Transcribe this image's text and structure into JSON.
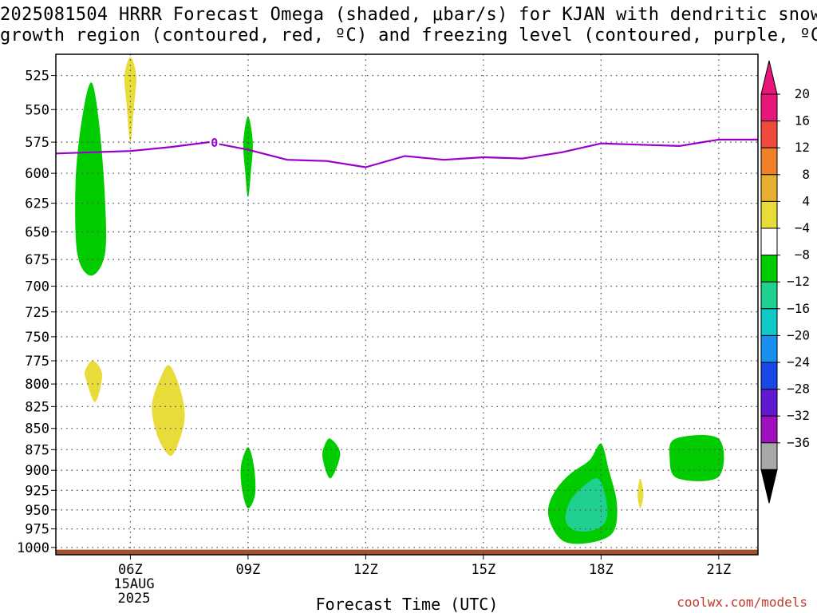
{
  "title": {
    "line1": "2025081504 HRRR Forecast Omega (shaded, μbar/s) for KJAN with dendritic snow",
    "line2": "growth region (contoured, red, ºC) and freezing level (contoured, purple, ºC)"
  },
  "credit": "coolwx.com/models",
  "chart_data": {
    "type": "time-height contour",
    "xlabel": "Forecast Time (UTC)",
    "x_ticks": [
      "06Z",
      "09Z",
      "12Z",
      "15Z",
      "18Z",
      "21Z"
    ],
    "x_ticks_hours": [
      6,
      9,
      12,
      15,
      18,
      21
    ],
    "x_date_label": [
      "15AUG",
      "2025"
    ],
    "xlim_hours": [
      4.1,
      22.0
    ],
    "ylabel": "",
    "y_ticks": [
      525,
      550,
      575,
      600,
      625,
      650,
      675,
      700,
      725,
      750,
      775,
      800,
      825,
      850,
      875,
      900,
      925,
      950,
      975,
      1000
    ],
    "ylim_hpa": [
      510,
      1010
    ],
    "y_log_scale": true,
    "grid": true,
    "colorbar": {
      "units": "μbar/s",
      "labels": [
        "20",
        "16",
        "12",
        "8",
        "4",
        "−4",
        "−8",
        "−12",
        "−16",
        "−20",
        "−24",
        "−28",
        "−32",
        "−36"
      ],
      "colors": [
        "#e8167a",
        "#f04a3a",
        "#f0802a",
        "#e8b030",
        "#e8dc3a",
        "#ffffff",
        "#00cc00",
        "#20d090",
        "#10c8c8",
        "#1890f0",
        "#1848e8",
        "#6018d0",
        "#a010c0",
        "#a8a8a8"
      ],
      "extend_colors": {
        "top": "#e8167a",
        "bottom": "#000000"
      }
    },
    "freezing_level": {
      "label": "0",
      "color": "#9900cc",
      "points": [
        [
          4.1,
          584
        ],
        [
          5.0,
          583
        ],
        [
          6.0,
          582
        ],
        [
          7.0,
          579
        ],
        [
          8.0,
          575
        ],
        [
          9.0,
          581
        ],
        [
          10.0,
          589
        ],
        [
          11.0,
          590
        ],
        [
          12.0,
          595
        ],
        [
          13.0,
          586
        ],
        [
          14.0,
          589
        ],
        [
          15.0,
          587
        ],
        [
          16.0,
          588
        ],
        [
          17.0,
          583
        ],
        [
          18.0,
          576
        ],
        [
          19.0,
          577
        ],
        [
          20.0,
          578
        ],
        [
          21.0,
          573
        ],
        [
          22.0,
          573
        ]
      ]
    },
    "omega_regions": [
      {
        "band": "-8 to -4",
        "color": "#00cc00",
        "points": [
          [
            5.0,
            530
          ],
          [
            5.2,
            560
          ],
          [
            5.35,
            620
          ],
          [
            5.35,
            670
          ],
          [
            5.0,
            690
          ],
          [
            4.65,
            670
          ],
          [
            4.6,
            610
          ],
          [
            4.75,
            560
          ]
        ]
      },
      {
        "band": "4 to 8",
        "color": "#e8dc3a",
        "points": [
          [
            6.0,
            512
          ],
          [
            6.15,
            525
          ],
          [
            6.1,
            545
          ],
          [
            6.0,
            575
          ],
          [
            5.9,
            545
          ],
          [
            5.85,
            525
          ]
        ]
      },
      {
        "band": "-8 to -4",
        "color": "#00cc00",
        "points": [
          [
            9.0,
            555
          ],
          [
            9.12,
            575
          ],
          [
            9.07,
            600
          ],
          [
            9.0,
            620
          ],
          [
            8.93,
            600
          ],
          [
            8.88,
            575
          ]
        ]
      },
      {
        "band": "4 to 8",
        "color": "#e8dc3a",
        "points": [
          [
            5.05,
            775
          ],
          [
            5.28,
            790
          ],
          [
            5.1,
            820
          ],
          [
            4.87,
            795
          ],
          [
            4.85,
            785
          ]
        ]
      },
      {
        "band": "4 to 8",
        "color": "#e8dc3a",
        "points": [
          [
            7.0,
            780
          ],
          [
            7.3,
            810
          ],
          [
            7.38,
            840
          ],
          [
            7.2,
            870
          ],
          [
            7.0,
            882
          ],
          [
            6.7,
            860
          ],
          [
            6.55,
            825
          ],
          [
            6.75,
            795
          ]
        ]
      },
      {
        "band": "-8 to -4",
        "color": "#00cc00",
        "points": [
          [
            9.0,
            872
          ],
          [
            9.15,
            895
          ],
          [
            9.18,
            930
          ],
          [
            9.0,
            948
          ],
          [
            8.85,
            925
          ],
          [
            8.82,
            895
          ]
        ]
      },
      {
        "band": "-8 to -4",
        "color": "#00cc00",
        "points": [
          [
            11.1,
            862
          ],
          [
            11.35,
            880
          ],
          [
            11.1,
            910
          ],
          [
            10.9,
            885
          ],
          [
            10.95,
            870
          ]
        ]
      },
      {
        "band": "-8 to -4",
        "color": "#00cc00",
        "points": [
          [
            18.0,
            868
          ],
          [
            18.2,
            900
          ],
          [
            18.4,
            940
          ],
          [
            18.35,
            975
          ],
          [
            18.0,
            990
          ],
          [
            17.3,
            995
          ],
          [
            16.9,
            985
          ],
          [
            16.65,
            955
          ],
          [
            16.8,
            928
          ],
          [
            17.2,
            905
          ],
          [
            17.7,
            888
          ]
        ]
      },
      {
        "band": "-12 to -8",
        "color": "#20d090",
        "points": [
          [
            17.9,
            910
          ],
          [
            18.1,
            930
          ],
          [
            18.15,
            960
          ],
          [
            17.9,
            975
          ],
          [
            17.4,
            978
          ],
          [
            17.1,
            965
          ],
          [
            17.2,
            940
          ],
          [
            17.5,
            922
          ]
        ]
      },
      {
        "band": "4 to 8",
        "color": "#e8dc3a",
        "points": [
          [
            19.0,
            910
          ],
          [
            19.08,
            930
          ],
          [
            19.0,
            948
          ],
          [
            18.93,
            930
          ]
        ]
      },
      {
        "band": "-8 to -4",
        "color": "#00cc00",
        "points": [
          [
            19.9,
            862
          ],
          [
            21.0,
            862
          ],
          [
            21.0,
            908
          ],
          [
            19.95,
            910
          ],
          [
            19.75,
            885
          ]
        ]
      }
    ],
    "surface": {
      "color": "#a0522d",
      "pressure_top": 1003
    }
  }
}
